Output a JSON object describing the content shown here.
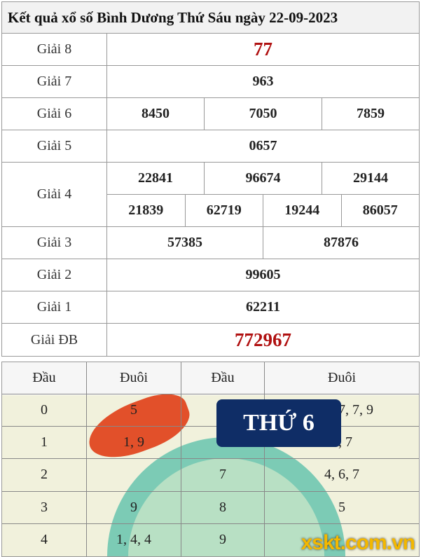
{
  "title": "Kết quả xổ số Bình Dương Thứ Sáu ngày 22-09-2023",
  "prizes": [
    {
      "label": "Giải 8",
      "rows": [
        [
          "77"
        ]
      ],
      "highlight": true
    },
    {
      "label": "Giải 7",
      "rows": [
        [
          "963"
        ]
      ]
    },
    {
      "label": "Giải 6",
      "rows": [
        [
          "8450",
          "7050",
          "7859"
        ]
      ]
    },
    {
      "label": "Giải 5",
      "rows": [
        [
          "0657"
        ]
      ]
    },
    {
      "label": "Giải 4",
      "rows": [
        [
          "22841",
          "96674",
          "29144"
        ],
        [
          "21839",
          "62719",
          "19244",
          "86057"
        ]
      ]
    },
    {
      "label": "Giải 3",
      "rows": [
        [
          "57385",
          "87876"
        ]
      ]
    },
    {
      "label": "Giải 2",
      "rows": [
        [
          "99605"
        ]
      ]
    },
    {
      "label": "Giải 1",
      "rows": [
        [
          "62211"
        ]
      ]
    },
    {
      "label": "Giải ĐB",
      "rows": [
        [
          "772967"
        ]
      ],
      "highlight": true
    }
  ],
  "loto": {
    "headers": [
      "Đầu",
      "Đuôi",
      "Đầu",
      "Đuôi"
    ],
    "rows": [
      [
        "0",
        "5",
        "5",
        "0, 0, 7, 7, 9"
      ],
      [
        "1",
        "1, 9",
        "6",
        "3, 7"
      ],
      [
        "2",
        "",
        "7",
        "4, 6, 7"
      ],
      [
        "3",
        "9",
        "8",
        "5"
      ],
      [
        "4",
        "1, 4, 4",
        "9",
        ""
      ]
    ]
  },
  "badge": "THỨ 6",
  "watermark": "xskt.com.vn",
  "colors": {
    "highlight": "#b01010",
    "badge_bg": "#0f2d66",
    "watermark": "#f3b800"
  }
}
